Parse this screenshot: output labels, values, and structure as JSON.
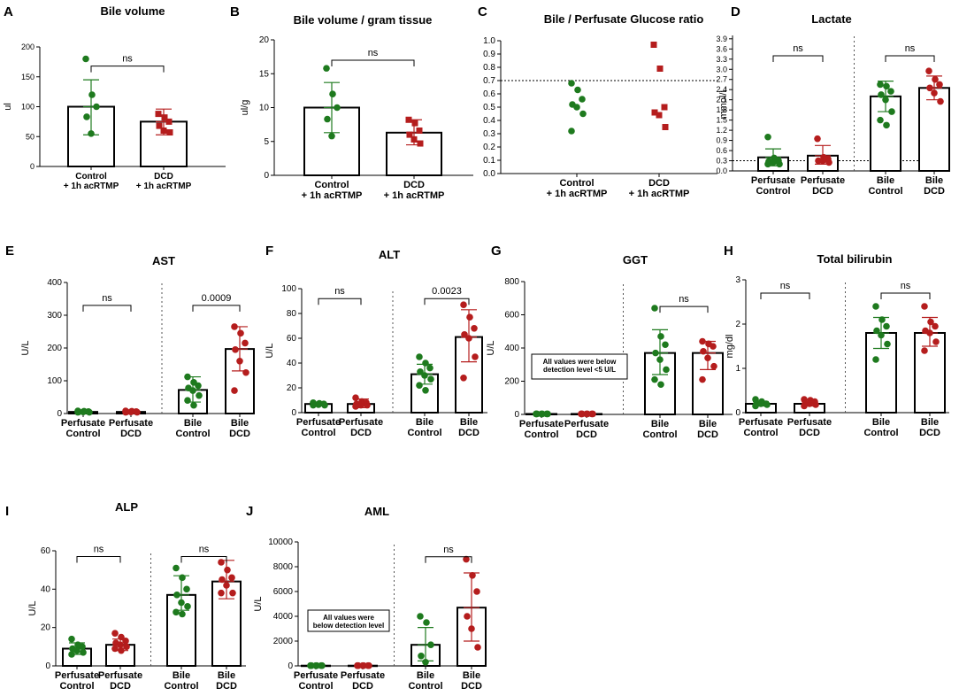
{
  "colors": {
    "control": "#1e7a1e",
    "dcd": "#b51d1d",
    "axis": "#000000",
    "bar_fill": "#ffffff"
  },
  "chart_data": [
    {
      "id": "A",
      "letter": "A",
      "type": "bar",
      "title": "Bile volume",
      "ylabel": "ul",
      "ylim": [
        0,
        200
      ],
      "ticks": [
        0,
        50,
        100,
        150,
        200
      ],
      "categories": [
        "Control\n+ 1h acRTMP",
        "DCD\n+ 1h acRTMP"
      ],
      "groups": [
        {
          "color": "control",
          "marker": "circle",
          "bar": 100,
          "err": [
            53,
            145
          ],
          "points": [
            180,
            120,
            100,
            83,
            55
          ]
        },
        {
          "color": "dcd",
          "marker": "square",
          "bar": 75,
          "err": [
            53,
            96
          ],
          "points": [
            88,
            82,
            75,
            68,
            60,
            57
          ]
        }
      ],
      "comparisons": [
        {
          "from": 0,
          "to": 1,
          "label": "ns",
          "y": 168
        }
      ]
    },
    {
      "id": "B",
      "letter": "B",
      "type": "bar",
      "title": "Bile volume / gram tissue",
      "ylabel": "ul/g",
      "ylim": [
        0,
        20
      ],
      "ticks": [
        0,
        5,
        10,
        15,
        20
      ],
      "categories": [
        "Control\n+ 1h acRTMP",
        "DCD\n+ 1h acRTMP"
      ],
      "groups": [
        {
          "color": "control",
          "marker": "circle",
          "bar": 10,
          "err": [
            6.3,
            13.7
          ],
          "points": [
            15.8,
            12.0,
            10.0,
            8.3,
            5.8
          ]
        },
        {
          "color": "dcd",
          "marker": "square",
          "bar": 6.3,
          "err": [
            4.5,
            8.2
          ],
          "points": [
            8.2,
            7.7,
            6.6,
            6.0,
            5.3,
            4.7
          ]
        }
      ],
      "comparisons": [
        {
          "from": 0,
          "to": 1,
          "label": "ns",
          "y": 17
        }
      ]
    },
    {
      "id": "C",
      "letter": "C",
      "type": "scatter",
      "title": "Bile / Perfusate Glucose ratio",
      "ylim": [
        0,
        1.0
      ],
      "ticks": [
        0.0,
        0.1,
        0.2,
        0.3,
        0.4,
        0.5,
        0.6,
        0.7,
        0.8,
        0.9,
        1.0
      ],
      "ref_line": 0.7,
      "categories": [
        "Control\n+ 1h acRTMP",
        "DCD\n+ 1h acRTMP"
      ],
      "groups": [
        {
          "color": "control",
          "marker": "circle",
          "points": [
            0.68,
            0.63,
            0.56,
            0.52,
            0.5,
            0.45,
            0.32
          ]
        },
        {
          "color": "dcd",
          "marker": "square",
          "points": [
            0.97,
            0.79,
            0.5,
            0.46,
            0.44,
            0.35
          ]
        }
      ]
    },
    {
      "id": "D",
      "letter": "D",
      "type": "bar",
      "title": "Lactate",
      "ylabel": "mmol/L",
      "ylim": [
        0,
        4.0
      ],
      "ticks": [
        0.0,
        0.3,
        0.6,
        0.9,
        1.2,
        1.5,
        1.8,
        2.1,
        2.4,
        2.7,
        3.0,
        3.3,
        3.6,
        3.9
      ],
      "ref_line": 0.3,
      "divider": true,
      "categories": [
        "Perfusate\nControl",
        "Perfusate\nDCD",
        "Bile\nControl",
        "Bile\nDCD"
      ],
      "groups": [
        {
          "color": "control",
          "marker": "circle",
          "bar": 0.4,
          "err": [
            0.15,
            0.65
          ],
          "points": [
            1.0,
            0.38,
            0.3,
            0.28,
            0.25,
            0.2,
            0.2
          ]
        },
        {
          "color": "dcd",
          "marker": "circle",
          "bar": 0.45,
          "err": [
            0.2,
            0.75
          ],
          "points": [
            0.95,
            0.4,
            0.35,
            0.3,
            0.3,
            0.25
          ]
        },
        {
          "color": "control",
          "marker": "circle",
          "bar": 2.2,
          "err": [
            1.75,
            2.65
          ],
          "points": [
            2.55,
            2.5,
            2.35,
            2.25,
            2.1,
            1.75,
            1.5,
            1.35
          ]
        },
        {
          "color": "dcd",
          "marker": "circle",
          "bar": 2.45,
          "err": [
            2.1,
            2.8
          ],
          "points": [
            2.95,
            2.7,
            2.55,
            2.45,
            2.3,
            2.05
          ]
        }
      ],
      "comparisons": [
        {
          "from": 0,
          "to": 1,
          "label": "ns",
          "y": 3.4
        },
        {
          "from": 2,
          "to": 3,
          "label": "ns",
          "y": 3.4
        }
      ]
    },
    {
      "id": "E",
      "letter": "E",
      "type": "bar",
      "title": "AST",
      "ylabel": "U/L",
      "ylim": [
        0,
        400
      ],
      "ticks": [
        0,
        100,
        200,
        300,
        400
      ],
      "divider": true,
      "categories": [
        "Perfusate\nControl",
        "Perfusate\nDCD",
        "Bile\nControl",
        "Bile\nDCD"
      ],
      "groups": [
        {
          "color": "control",
          "marker": "circle",
          "bar": 5,
          "err": [
            3,
            8
          ],
          "points": [
            8,
            7,
            6,
            5,
            5,
            4,
            4
          ]
        },
        {
          "color": "dcd",
          "marker": "circle",
          "bar": 5,
          "err": [
            3,
            8
          ],
          "points": [
            8,
            7,
            6,
            5,
            5,
            4,
            4
          ]
        },
        {
          "color": "control",
          "marker": "circle",
          "bar": 72,
          "err": [
            35,
            112
          ],
          "points": [
            112,
            95,
            85,
            78,
            70,
            55,
            40,
            25
          ]
        },
        {
          "color": "dcd",
          "marker": "circle",
          "bar": 197,
          "err": [
            130,
            265
          ],
          "points": [
            265,
            245,
            215,
            195,
            160,
            125,
            70
          ]
        }
      ],
      "comparisons": [
        {
          "from": 0,
          "to": 1,
          "label": "ns",
          "y": 330
        },
        {
          "from": 2,
          "to": 3,
          "label": "0.0009",
          "y": 330
        }
      ]
    },
    {
      "id": "F",
      "letter": "F",
      "type": "bar",
      "title": "ALT",
      "ylabel": "U/L",
      "ylim": [
        0,
        100
      ],
      "ticks": [
        0,
        20,
        40,
        60,
        80,
        100
      ],
      "divider": true,
      "categories": [
        "Perfusate\nControl",
        "Perfusate\nDCD",
        "Bile\nControl",
        "Bile\nDCD"
      ],
      "groups": [
        {
          "color": "control",
          "marker": "circle",
          "bar": 7,
          "err": [
            5.5,
            8.5
          ],
          "points": [
            8,
            7.5,
            7,
            7,
            6.5,
            6,
            6
          ]
        },
        {
          "color": "dcd",
          "marker": "circle",
          "bar": 7,
          "err": [
            4,
            11
          ],
          "points": [
            12,
            9,
            8,
            7,
            6,
            6,
            5
          ]
        },
        {
          "color": "control",
          "marker": "circle",
          "bar": 31,
          "err": [
            23,
            39
          ],
          "points": [
            45,
            40,
            36,
            33,
            30,
            27,
            22,
            18
          ]
        },
        {
          "color": "dcd",
          "marker": "circle",
          "bar": 61,
          "err": [
            41,
            83
          ],
          "points": [
            87,
            77,
            68,
            63,
            60,
            45,
            28
          ]
        }
      ],
      "comparisons": [
        {
          "from": 0,
          "to": 1,
          "label": "ns",
          "y": 92
        },
        {
          "from": 2,
          "to": 3,
          "label": "0.0023",
          "y": 92
        }
      ]
    },
    {
      "id": "G",
      "letter": "G",
      "type": "bar",
      "title": "GGT",
      "ylabel": "U/L",
      "ylim": [
        0,
        800
      ],
      "ticks": [
        0,
        200,
        400,
        600,
        800
      ],
      "divider": true,
      "note": "All values were below\ndetection level <5 U/L",
      "categories": [
        "Perfusate\nControl",
        "Perfusate\nDCD",
        "Bile\nControl",
        "Bile\nDCD"
      ],
      "groups": [
        {
          "color": "control",
          "marker": "circle",
          "bar": 3,
          "err": [
            0,
            0
          ],
          "points": [
            3,
            3,
            3,
            3,
            3,
            3,
            3
          ]
        },
        {
          "color": "dcd",
          "marker": "circle",
          "bar": 3,
          "err": [
            0,
            0
          ],
          "points": [
            3,
            3,
            3,
            3,
            3,
            3,
            3
          ]
        },
        {
          "color": "control",
          "marker": "circle",
          "bar": 370,
          "err": [
            240,
            510
          ],
          "points": [
            640,
            470,
            420,
            370,
            330,
            270,
            210,
            180
          ]
        },
        {
          "color": "dcd",
          "marker": "circle",
          "bar": 370,
          "err": [
            270,
            440
          ],
          "points": [
            440,
            425,
            410,
            380,
            340,
            290,
            210
          ]
        }
      ],
      "comparisons": [
        {
          "from": 2,
          "to": 3,
          "label": "ns",
          "y": 650
        }
      ]
    },
    {
      "id": "H",
      "letter": "H",
      "type": "bar",
      "title": "Total bilirubin",
      "ylabel": "mg/dl",
      "ylim": [
        0,
        3
      ],
      "ticks": [
        0,
        1,
        2,
        3
      ],
      "divider": true,
      "categories": [
        "Perfusate\nControl",
        "Perfusate\nDCD",
        "Bile\nControl",
        "Bile\nDCD"
      ],
      "groups": [
        {
          "color": "control",
          "marker": "circle",
          "bar": 0.2,
          "err": [
            0.15,
            0.25
          ],
          "points": [
            0.3,
            0.25,
            0.2,
            0.2,
            0.2,
            0.18,
            0.15
          ]
        },
        {
          "color": "dcd",
          "marker": "circle",
          "bar": 0.2,
          "err": [
            0.15,
            0.25
          ],
          "points": [
            0.3,
            0.28,
            0.25,
            0.2,
            0.2,
            0.18,
            0.15
          ]
        },
        {
          "color": "control",
          "marker": "circle",
          "bar": 1.8,
          "err": [
            1.45,
            2.15
          ],
          "points": [
            2.4,
            2.1,
            1.95,
            1.85,
            1.75,
            1.55,
            1.2
          ]
        },
        {
          "color": "dcd",
          "marker": "circle",
          "bar": 1.8,
          "err": [
            1.5,
            2.15
          ],
          "points": [
            2.4,
            2.05,
            1.95,
            1.85,
            1.8,
            1.6,
            1.4
          ]
        }
      ],
      "comparisons": [
        {
          "from": 0,
          "to": 1,
          "label": "ns",
          "y": 2.7
        },
        {
          "from": 2,
          "to": 3,
          "label": "ns",
          "y": 2.7
        }
      ]
    },
    {
      "id": "I",
      "letter": "I",
      "type": "bar",
      "title": "ALP",
      "ylabel": "U/L",
      "ylim": [
        0,
        60
      ],
      "ticks": [
        0,
        20,
        40,
        60
      ],
      "divider": true,
      "categories": [
        "Perfusate\nControl",
        "Perfusate\nDCD",
        "Bile\nControl",
        "Bile\nDCD"
      ],
      "groups": [
        {
          "color": "control",
          "marker": "circle",
          "bar": 9,
          "err": [
            6,
            12
          ],
          "points": [
            14,
            11,
            10,
            9,
            8,
            7,
            6
          ]
        },
        {
          "color": "dcd",
          "marker": "circle",
          "bar": 11,
          "err": [
            8,
            14
          ],
          "points": [
            17,
            15,
            13,
            12,
            11,
            10,
            9,
            8
          ]
        },
        {
          "color": "control",
          "marker": "circle",
          "bar": 37,
          "err": [
            29,
            47
          ],
          "points": [
            51,
            46,
            40,
            37,
            33,
            31,
            28,
            27
          ]
        },
        {
          "color": "dcd",
          "marker": "circle",
          "bar": 44,
          "err": [
            35,
            55
          ],
          "points": [
            54,
            50,
            46,
            45,
            42,
            38,
            38
          ]
        }
      ],
      "comparisons": [
        {
          "from": 0,
          "to": 1,
          "label": "ns",
          "y": 57
        },
        {
          "from": 2,
          "to": 3,
          "label": "ns",
          "y": 57
        }
      ]
    },
    {
      "id": "J",
      "letter": "J",
      "type": "bar",
      "title": "AML",
      "ylabel": "U/L",
      "ylim": [
        0,
        10000
      ],
      "ticks": [
        0,
        2000,
        4000,
        6000,
        8000,
        10000
      ],
      "divider": true,
      "note": "All values were\nbelow detection level",
      "categories": [
        "Perfusate\nControl",
        "Perfusate\nDCD",
        "Bile\nControl",
        "Bile\nDCD"
      ],
      "groups": [
        {
          "color": "control",
          "marker": "circle",
          "bar": 20,
          "err": [
            0,
            0
          ],
          "points": [
            20,
            20,
            20,
            20,
            20,
            20,
            20
          ]
        },
        {
          "color": "dcd",
          "marker": "circle",
          "bar": 20,
          "err": [
            0,
            0
          ],
          "points": [
            20,
            20,
            20,
            20,
            20,
            20,
            20
          ]
        },
        {
          "color": "control",
          "marker": "circle",
          "bar": 1700,
          "err": [
            400,
            3100
          ],
          "points": [
            4000,
            3500,
            1700,
            800,
            300
          ]
        },
        {
          "color": "dcd",
          "marker": "circle",
          "bar": 4700,
          "err": [
            2000,
            7500
          ],
          "points": [
            8600,
            7300,
            6000,
            4000,
            3000,
            1500
          ]
        }
      ],
      "comparisons": [
        {
          "from": 2,
          "to": 3,
          "label": "ns",
          "y": 8800
        }
      ]
    }
  ]
}
